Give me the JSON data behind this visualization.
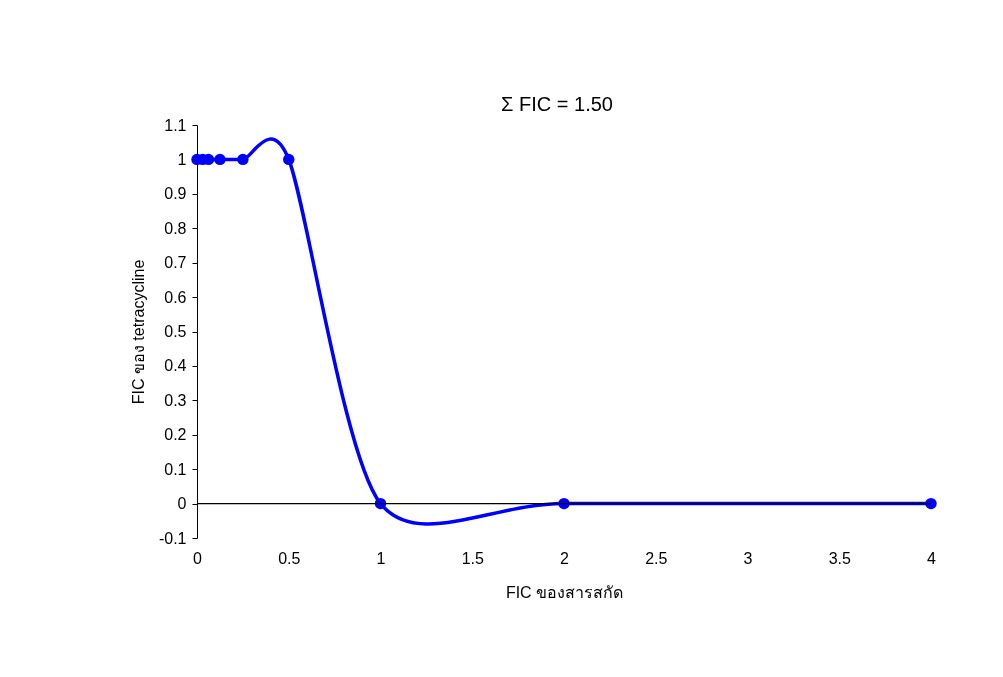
{
  "chart_data": {
    "type": "line",
    "xlabel": "FIC ของสารสกัด",
    "ylabel": "FIC ของ tetracycline",
    "annotations": [
      "Σ FIC = 1.50"
    ],
    "x": [
      0,
      0.03125,
      0.0625,
      0.125,
      0.25,
      0.5,
      1,
      2,
      4
    ],
    "series": [
      {
        "color": "#0000ff",
        "values": [
          1,
          1,
          1,
          1,
          1,
          1,
          0,
          0,
          0
        ]
      }
    ],
    "xlim": [
      0,
      4
    ],
    "xticks": [
      0,
      0.5,
      1,
      1.5,
      2,
      2.5,
      3,
      3.5,
      4
    ],
    "ylim": [
      -0.1,
      1.1
    ],
    "yticks": [
      -0.1,
      0,
      0.1,
      0.2,
      0.3,
      0.4,
      0.5,
      0.6,
      0.7,
      0.8,
      0.9,
      1,
      1.1
    ],
    "ref_lines": [
      {
        "axis": "y",
        "value": 0,
        "color": "#000000"
      }
    ],
    "marker": "circle",
    "line_style": "solid",
    "grid": false
  }
}
